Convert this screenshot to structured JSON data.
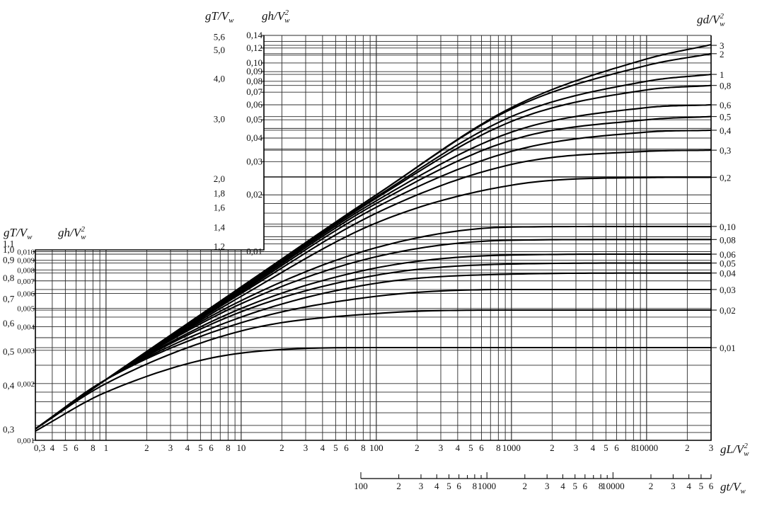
{
  "chart_data": {
    "type": "line",
    "title": "",
    "x_axis": {
      "label_main": "gL/V",
      "label_sup": "2",
      "label_sub": "w",
      "scale": "log",
      "range": [
        0.3,
        30000
      ],
      "ticks": [
        {
          "v": 0.3,
          "t": "0,3"
        },
        {
          "v": 0.4,
          "t": "4"
        },
        {
          "v": 0.5,
          "t": "5"
        },
        {
          "v": 0.6,
          "t": "6"
        },
        {
          "v": 0.8,
          "t": "8"
        },
        {
          "v": 1,
          "t": "1"
        },
        {
          "v": 2,
          "t": "2"
        },
        {
          "v": 3,
          "t": "3"
        },
        {
          "v": 4,
          "t": "4"
        },
        {
          "v": 5,
          "t": "5"
        },
        {
          "v": 6,
          "t": "6"
        },
        {
          "v": 8,
          "t": "8"
        },
        {
          "v": 10,
          "t": "10"
        },
        {
          "v": 20,
          "t": "2"
        },
        {
          "v": 30,
          "t": "3"
        },
        {
          "v": 40,
          "t": "4"
        },
        {
          "v": 50,
          "t": "5"
        },
        {
          "v": 60,
          "t": "6"
        },
        {
          "v": 80,
          "t": "8"
        },
        {
          "v": 100,
          "t": "100"
        },
        {
          "v": 200,
          "t": "2"
        },
        {
          "v": 300,
          "t": "3"
        },
        {
          "v": 400,
          "t": "4"
        },
        {
          "v": 500,
          "t": "5"
        },
        {
          "v": 600,
          "t": "6"
        },
        {
          "v": 800,
          "t": "8"
        },
        {
          "v": 1000,
          "t": "1000"
        },
        {
          "v": 2000,
          "t": "2"
        },
        {
          "v": 3000,
          "t": "3"
        },
        {
          "v": 4000,
          "t": "4"
        },
        {
          "v": 5000,
          "t": "5"
        },
        {
          "v": 6000,
          "t": "6"
        },
        {
          "v": 8000,
          "t": "8"
        },
        {
          "v": 10000,
          "t": "10000"
        },
        {
          "v": 20000,
          "t": "2"
        },
        {
          "v": 30000,
          "t": "3"
        }
      ]
    },
    "t_axis": {
      "label_main": "gt/V",
      "label_sub": "w",
      "scale": "log",
      "range": [
        100,
        60000
      ],
      "ticks": [
        {
          "v": 100,
          "t": "100"
        },
        {
          "v": 200,
          "t": "2"
        },
        {
          "v": 300,
          "t": "3"
        },
        {
          "v": 400,
          "t": "4"
        },
        {
          "v": 500,
          "t": "5"
        },
        {
          "v": 600,
          "t": "6"
        },
        {
          "v": 800,
          "t": "8"
        },
        {
          "v": 1000,
          "t": "1000"
        },
        {
          "v": 2000,
          "t": "2"
        },
        {
          "v": 3000,
          "t": "3"
        },
        {
          "v": 4000,
          "t": "4"
        },
        {
          "v": 5000,
          "t": "5"
        },
        {
          "v": 6000,
          "t": "6"
        },
        {
          "v": 8000,
          "t": "8"
        },
        {
          "v": 10000,
          "t": "10000"
        },
        {
          "v": 20000,
          "t": "2"
        },
        {
          "v": 30000,
          "t": "3"
        },
        {
          "v": 40000,
          "t": "4"
        },
        {
          "v": 50000,
          "t": "5"
        },
        {
          "v": 60000,
          "t": "6"
        }
      ],
      "minor": [
        700,
        900,
        7000,
        9000
      ]
    },
    "y_axis_left": {
      "label_T": "gT/V",
      "label_T_sub": "w",
      "label_h": "gh/V",
      "label_h_sup": "2",
      "label_h_sub": "w",
      "scale": "log",
      "range": [
        0.001,
        0.14
      ],
      "period_ticks_lower": [
        {
          "t": "0,3",
          "h": 0.00115
        },
        {
          "t": "0,4",
          "h": 0.00196
        },
        {
          "t": "0,5",
          "h": 0.00297
        },
        {
          "t": "0,6",
          "h": 0.0042
        },
        {
          "t": "0,7",
          "h": 0.00565
        },
        {
          "t": "0,8",
          "h": 0.0073
        },
        {
          "t": "0,9",
          "h": 0.0091
        },
        {
          "t": "1,0",
          "h": 0.0103
        },
        {
          "t": "1,1",
          "h": 0.0111
        }
      ],
      "height_ticks_lower": [
        {
          "t": "0,001",
          "h": 0.001
        },
        {
          "t": "0,002",
          "h": 0.002
        },
        {
          "t": "0,003",
          "h": 0.003
        },
        {
          "t": "0,004",
          "h": 0.004
        },
        {
          "t": "0,005",
          "h": 0.005
        },
        {
          "t": "0,006",
          "h": 0.006
        },
        {
          "t": "0,007",
          "h": 0.007
        },
        {
          "t": "0,008",
          "h": 0.008
        },
        {
          "t": "0,009",
          "h": 0.009
        },
        {
          "t": "0,010",
          "h": 0.01
        }
      ],
      "period_ticks_upper": [
        {
          "t": "1,2",
          "h": 0.0107
        },
        {
          "t": "1,4",
          "h": 0.0135
        },
        {
          "t": "1,6",
          "h": 0.0172
        },
        {
          "t": "1,8",
          "h": 0.0205
        },
        {
          "t": "2,0",
          "h": 0.0245
        },
        {
          "t": "3,0",
          "h": 0.0508
        },
        {
          "t": "4,0",
          "h": 0.083
        },
        {
          "t": "5,0",
          "h": 0.118
        },
        {
          "t": "5,6",
          "h": 0.138
        }
      ],
      "height_ticks_upper": [
        {
          "t": "0,01",
          "h": 0.01
        },
        {
          "t": "0,02",
          "h": 0.02
        },
        {
          "t": "0,03",
          "h": 0.03
        },
        {
          "t": "0,04",
          "h": 0.04
        },
        {
          "t": "0,05",
          "h": 0.05
        },
        {
          "t": "0,06",
          "h": 0.06
        },
        {
          "t": "0,07",
          "h": 0.07
        },
        {
          "t": "0,08",
          "h": 0.08
        },
        {
          "t": "0,09",
          "h": 0.09
        },
        {
          "t": "0,10",
          "h": 0.1
        },
        {
          "t": "0,12",
          "h": 0.12
        },
        {
          "t": "0,14",
          "h": 0.14
        }
      ]
    },
    "y_axis_right": {
      "label_main": "gd/V",
      "label_sup": "2",
      "label_sub": "w",
      "ticks": [
        {
          "t": "3",
          "h": 0.124
        },
        {
          "t": "2",
          "h": 0.112
        },
        {
          "t": "1",
          "h": 0.087
        },
        {
          "t": "0,8",
          "h": 0.076
        },
        {
          "t": "0,6",
          "h": 0.06
        },
        {
          "t": "0,5",
          "h": 0.052
        },
        {
          "t": "0,4",
          "h": 0.044
        },
        {
          "t": "0,3",
          "h": 0.0345
        },
        {
          "t": "0,2",
          "h": 0.0248
        },
        {
          "t": "0,10",
          "h": 0.0136
        },
        {
          "t": "0,08",
          "h": 0.0116
        },
        {
          "t": "0,06",
          "h": 0.0097
        },
        {
          "t": "0,05",
          "h": 0.0087
        },
        {
          "t": "0,04",
          "h": 0.0077
        },
        {
          "t": "0,03",
          "h": 0.0063
        },
        {
          "t": "0,02",
          "h": 0.0049
        },
        {
          "t": "0,01",
          "h": 0.0031
        }
      ]
    },
    "grid": true,
    "series": [
      {
        "gd": 3,
        "points": [
          [
            0.3,
            0.00115
          ],
          [
            1,
            0.0021
          ],
          [
            10,
            0.0065
          ],
          [
            100,
            0.02
          ],
          [
            1000,
            0.058
          ],
          [
            10000,
            0.105
          ],
          [
            30000,
            0.125
          ]
        ]
      },
      {
        "gd": 2,
        "points": [
          [
            0.3,
            0.00115
          ],
          [
            1,
            0.0021
          ],
          [
            10,
            0.0065
          ],
          [
            100,
            0.02
          ],
          [
            1000,
            0.057
          ],
          [
            10000,
            0.097
          ],
          [
            30000,
            0.112
          ]
        ]
      },
      {
        "gd": 1,
        "points": [
          [
            0.3,
            0.00115
          ],
          [
            1,
            0.0021
          ],
          [
            10,
            0.0064
          ],
          [
            100,
            0.0195
          ],
          [
            1000,
            0.052
          ],
          [
            10000,
            0.08
          ],
          [
            30000,
            0.087
          ]
        ]
      },
      {
        "gd": 0.8,
        "points": [
          [
            0.3,
            0.00115
          ],
          [
            1,
            0.0021
          ],
          [
            10,
            0.0064
          ],
          [
            100,
            0.0192
          ],
          [
            1000,
            0.049
          ],
          [
            10000,
            0.072
          ],
          [
            30000,
            0.076
          ]
        ]
      },
      {
        "gd": 0.6,
        "points": [
          [
            0.3,
            0.00115
          ],
          [
            1,
            0.0021
          ],
          [
            10,
            0.0063
          ],
          [
            100,
            0.0186
          ],
          [
            1000,
            0.043
          ],
          [
            10000,
            0.058
          ],
          [
            30000,
            0.06
          ]
        ]
      },
      {
        "gd": 0.5,
        "points": [
          [
            0.3,
            0.00115
          ],
          [
            1,
            0.0021
          ],
          [
            10,
            0.0062
          ],
          [
            100,
            0.018
          ],
          [
            1000,
            0.039
          ],
          [
            10000,
            0.05
          ],
          [
            30000,
            0.052
          ]
        ]
      },
      {
        "gd": 0.4,
        "points": [
          [
            0.3,
            0.00115
          ],
          [
            1,
            0.0021
          ],
          [
            10,
            0.0061
          ],
          [
            100,
            0.0172
          ],
          [
            1000,
            0.034
          ],
          [
            10000,
            0.043
          ],
          [
            30000,
            0.044
          ]
        ]
      },
      {
        "gd": 0.3,
        "points": [
          [
            0.3,
            0.00115
          ],
          [
            1,
            0.0021
          ],
          [
            10,
            0.006
          ],
          [
            100,
            0.016
          ],
          [
            1000,
            0.029
          ],
          [
            10000,
            0.034
          ],
          [
            30000,
            0.0345
          ]
        ]
      },
      {
        "gd": 0.2,
        "points": [
          [
            0.3,
            0.00115
          ],
          [
            1,
            0.0021
          ],
          [
            10,
            0.0058
          ],
          [
            100,
            0.0142
          ],
          [
            1000,
            0.0225
          ],
          [
            10000,
            0.0247
          ],
          [
            30000,
            0.0248
          ]
        ]
      },
      {
        "gd": 0.1,
        "points": [
          [
            0.3,
            0.00115
          ],
          [
            1,
            0.0021
          ],
          [
            10,
            0.0055
          ],
          [
            100,
            0.0105
          ],
          [
            1000,
            0.0135
          ],
          [
            10000,
            0.0136
          ],
          [
            30000,
            0.0136
          ]
        ]
      },
      {
        "gd": 0.08,
        "points": [
          [
            0.3,
            0.00115
          ],
          [
            1,
            0.0021
          ],
          [
            10,
            0.0053
          ],
          [
            100,
            0.0094
          ],
          [
            1000,
            0.0115
          ],
          [
            10000,
            0.0116
          ],
          [
            30000,
            0.0116
          ]
        ]
      },
      {
        "gd": 0.06,
        "points": [
          [
            0.3,
            0.00115
          ],
          [
            1,
            0.0021
          ],
          [
            10,
            0.005
          ],
          [
            100,
            0.0082
          ],
          [
            1000,
            0.0096
          ],
          [
            10000,
            0.0097
          ],
          [
            30000,
            0.0097
          ]
        ]
      },
      {
        "gd": 0.05,
        "points": [
          [
            0.3,
            0.00115
          ],
          [
            1,
            0.0021
          ],
          [
            10,
            0.0048
          ],
          [
            100,
            0.0075
          ],
          [
            1000,
            0.0086
          ],
          [
            10000,
            0.0087
          ],
          [
            30000,
            0.0087
          ]
        ]
      },
      {
        "gd": 0.04,
        "points": [
          [
            0.3,
            0.00115
          ],
          [
            1,
            0.0021
          ],
          [
            10,
            0.0045
          ],
          [
            100,
            0.0068
          ],
          [
            1000,
            0.0076
          ],
          [
            10000,
            0.0077
          ],
          [
            30000,
            0.0077
          ]
        ]
      },
      {
        "gd": 0.03,
        "points": [
          [
            0.3,
            0.00115
          ],
          [
            1,
            0.0021
          ],
          [
            10,
            0.0042
          ],
          [
            100,
            0.0058
          ],
          [
            1000,
            0.0063
          ],
          [
            10000,
            0.0063
          ],
          [
            30000,
            0.0063
          ]
        ]
      },
      {
        "gd": 0.02,
        "points": [
          [
            0.3,
            0.00115
          ],
          [
            1,
            0.002
          ],
          [
            10,
            0.0038
          ],
          [
            100,
            0.0047
          ],
          [
            1000,
            0.0049
          ],
          [
            10000,
            0.0049
          ],
          [
            30000,
            0.0049
          ]
        ]
      },
      {
        "gd": 0.01,
        "points": [
          [
            0.3,
            0.00112
          ],
          [
            1,
            0.0018
          ],
          [
            10,
            0.0029
          ],
          [
            100,
            0.0031
          ],
          [
            1000,
            0.0031
          ],
          [
            10000,
            0.0031
          ],
          [
            30000,
            0.0031
          ]
        ]
      }
    ]
  }
}
